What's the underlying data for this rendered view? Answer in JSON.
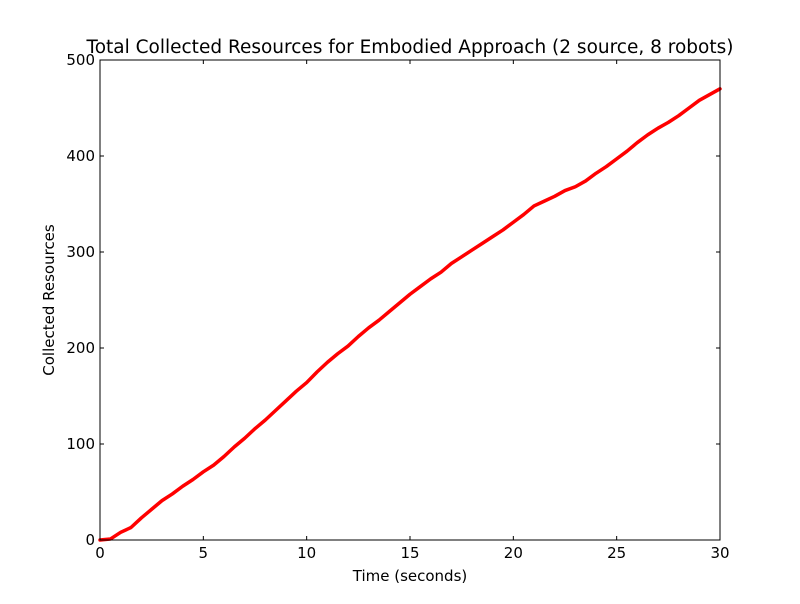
{
  "chart_data": {
    "type": "line",
    "title": "Total Collected Resources for Embodied Approach (2 source, 8 robots)",
    "xlabel": "Time (seconds)",
    "ylabel": "Collected Resources",
    "xlim": [
      0,
      30
    ],
    "ylim": [
      0,
      500
    ],
    "xticks": [
      "0",
      "5",
      "10",
      "15",
      "20",
      "25",
      "30"
    ],
    "yticks": [
      "0",
      "100",
      "200",
      "300",
      "400",
      "500"
    ],
    "grid": false,
    "legend": "none",
    "series": [
      {
        "color": "#ff0000",
        "x": [
          0,
          0.5,
          1,
          1.5,
          2,
          2.5,
          3,
          3.5,
          4,
          4.5,
          5,
          5.5,
          6,
          6.5,
          7,
          7.5,
          8,
          8.5,
          9,
          9.5,
          10,
          10.5,
          11,
          11.5,
          12,
          12.5,
          13,
          13.5,
          14,
          14.5,
          15,
          15.5,
          16,
          16.5,
          17,
          17.5,
          18,
          18.5,
          19,
          19.5,
          20,
          20.5,
          21,
          21.5,
          22,
          22.5,
          23,
          23.5,
          24,
          24.5,
          25,
          25.5,
          26,
          26.5,
          27,
          27.5,
          28,
          28.5,
          29,
          29.5,
          30
        ],
        "y": [
          0,
          1,
          8,
          13,
          23,
          32,
          41,
          48,
          56,
          63,
          71,
          78,
          87,
          97,
          106,
          116,
          125,
          135,
          145,
          155,
          164,
          175,
          185,
          194,
          202,
          212,
          221,
          229,
          238,
          247,
          256,
          264,
          272,
          279,
          288,
          295,
          302,
          309,
          316,
          323,
          331,
          339,
          348,
          353,
          358,
          364,
          368,
          374,
          382,
          389,
          397,
          405,
          414,
          422,
          429,
          435,
          442,
          450,
          458,
          464,
          470
        ]
      }
    ]
  }
}
